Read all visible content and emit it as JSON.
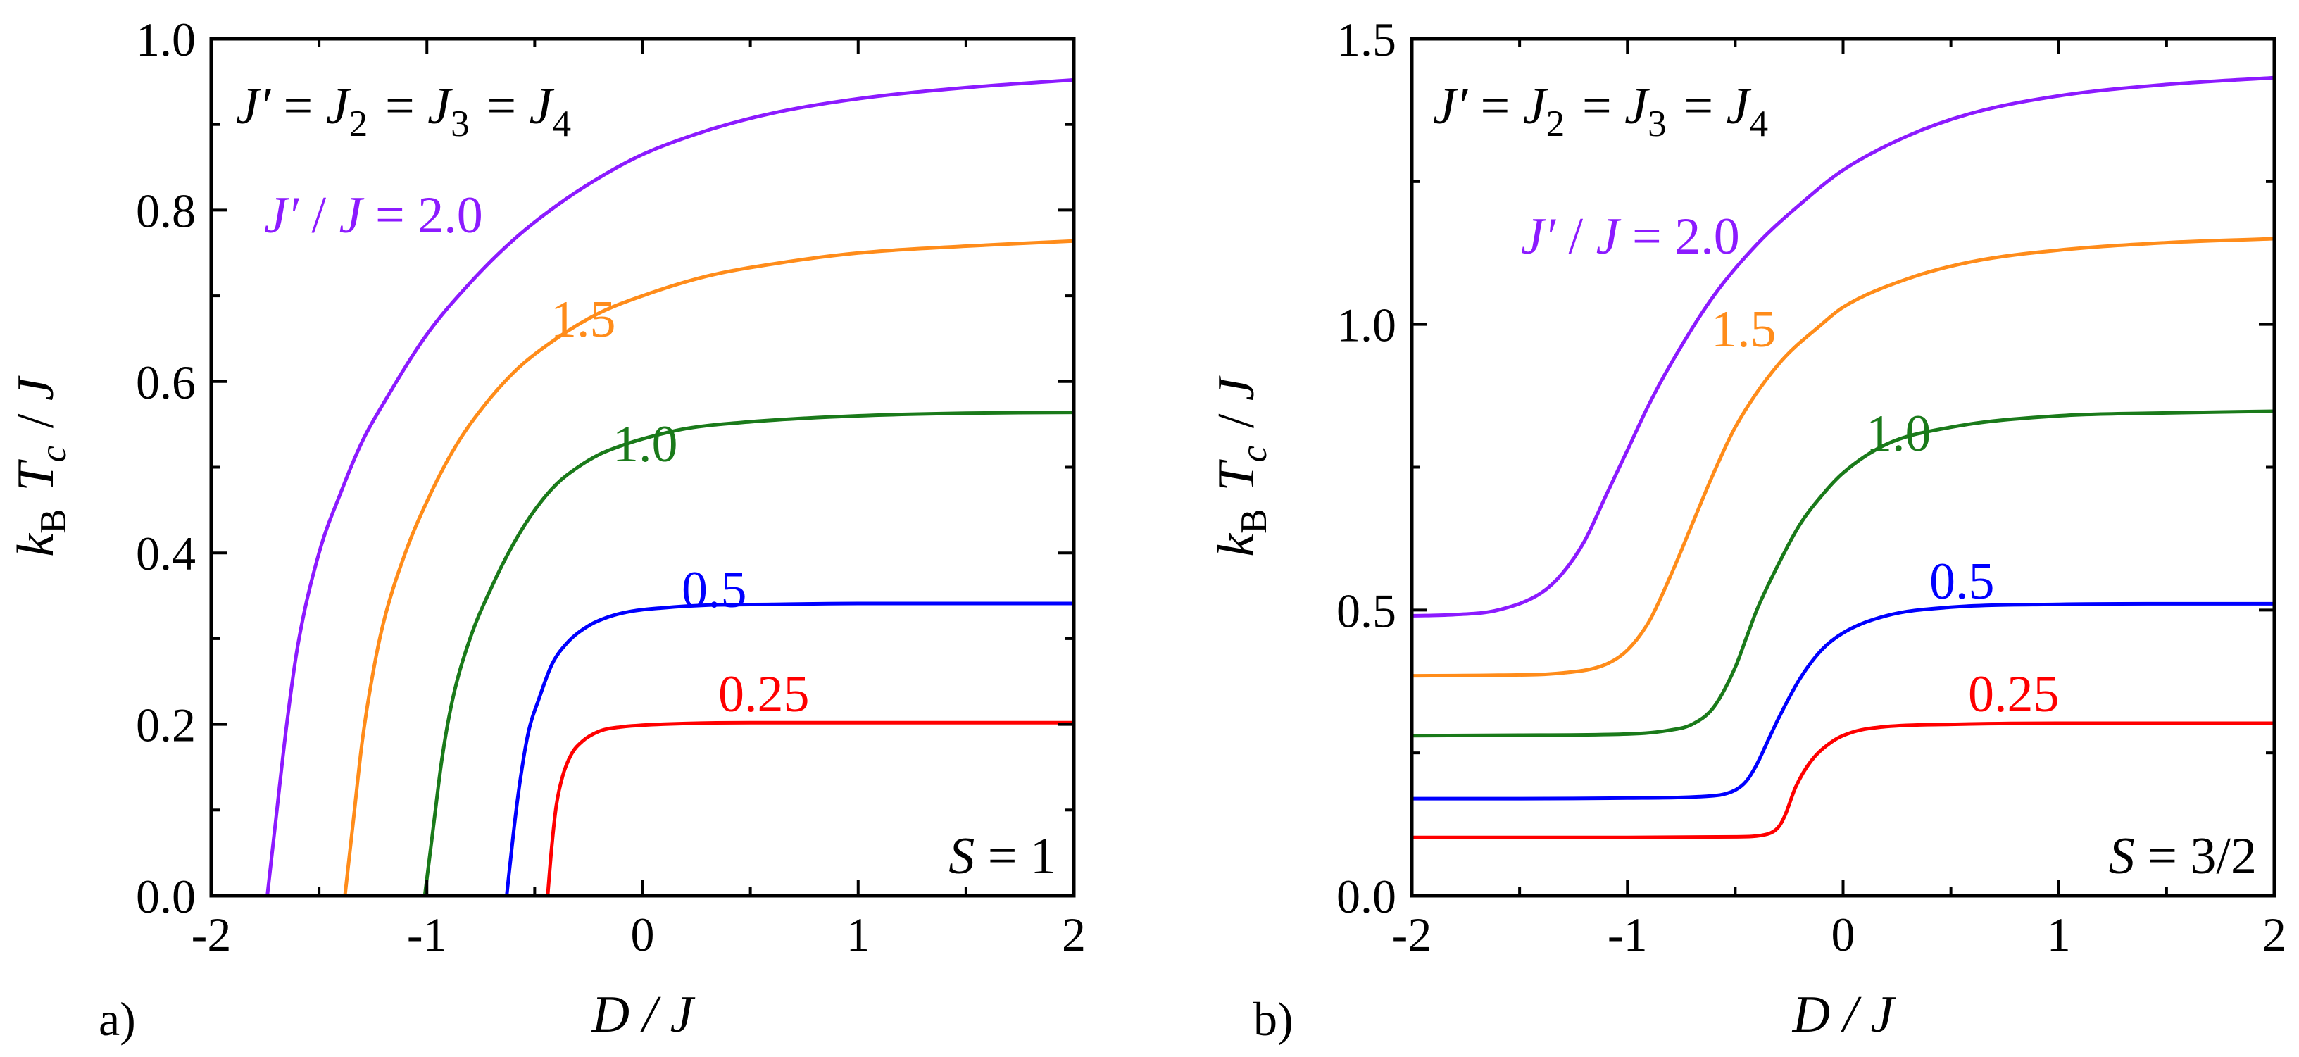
{
  "chart_data": [
    {
      "type": "line",
      "panel_tag": "a)",
      "xlabel": "D / J",
      "ylabel": "k_B T_c / J",
      "xlim": [
        -2,
        2
      ],
      "ylim": [
        0,
        1.0
      ],
      "xticks": [
        {
          "value": -2,
          "label": "-2"
        },
        {
          "value": -1,
          "label": "-1"
        },
        {
          "value": 0,
          "label": "0"
        },
        {
          "value": 1,
          "label": "1"
        },
        {
          "value": 2,
          "label": "2"
        }
      ],
      "yticks": [
        {
          "value": 0.0,
          "label": "0.0"
        },
        {
          "value": 0.2,
          "label": "0.2"
        },
        {
          "value": 0.4,
          "label": "0.4"
        },
        {
          "value": 0.6,
          "label": "0.6"
        },
        {
          "value": 0.8,
          "label": "0.8"
        },
        {
          "value": 1.0,
          "label": "1.0"
        }
      ],
      "condition": "J′ = J₂ = J₃ = J₄",
      "spin": "S = 1",
      "series": [
        {
          "name": "J′ / J = 2.0",
          "label": "J′ / J = 2.0",
          "color": "#8c1aff",
          "x": [
            -1.74,
            -1.7,
            -1.65,
            -1.6,
            -1.5,
            -1.4,
            -1.3,
            -1.2,
            -1.0,
            -0.8,
            -0.6,
            -0.4,
            -0.2,
            0.0,
            0.3,
            0.6,
            1.0,
            1.5,
            2.0
          ],
          "y": [
            0.0,
            0.09,
            0.2,
            0.29,
            0.4,
            0.47,
            0.53,
            0.575,
            0.655,
            0.715,
            0.765,
            0.805,
            0.838,
            0.865,
            0.893,
            0.913,
            0.93,
            0.943,
            0.952
          ]
        },
        {
          "name": "1.5",
          "label": "1.5",
          "color": "#ff8c1a",
          "x": [
            -1.38,
            -1.34,
            -1.3,
            -1.25,
            -1.2,
            -1.1,
            -1.0,
            -0.9,
            -0.8,
            -0.6,
            -0.4,
            -0.2,
            0.0,
            0.3,
            0.6,
            1.0,
            1.5,
            2.0
          ],
          "y": [
            0.0,
            0.09,
            0.18,
            0.26,
            0.32,
            0.4,
            0.46,
            0.51,
            0.55,
            0.61,
            0.65,
            0.68,
            0.7,
            0.723,
            0.737,
            0.75,
            0.758,
            0.764
          ]
        },
        {
          "name": "1.0",
          "label": "1.0",
          "color": "#1a7a1a",
          "x": [
            -1.01,
            -0.97,
            -0.93,
            -0.88,
            -0.8,
            -0.7,
            -0.6,
            -0.5,
            -0.4,
            -0.3,
            -0.2,
            -0.1,
            0.0,
            0.2,
            0.5,
            1.0,
            1.5,
            2.0
          ],
          "y": [
            0.0,
            0.08,
            0.16,
            0.23,
            0.3,
            0.36,
            0.41,
            0.45,
            0.48,
            0.5,
            0.515,
            0.525,
            0.533,
            0.545,
            0.553,
            0.56,
            0.563,
            0.564
          ]
        },
        {
          "name": "0.5",
          "label": "0.5",
          "color": "#0000ff",
          "x": [
            -0.63,
            -0.6,
            -0.57,
            -0.53,
            -0.48,
            -0.42,
            -0.35,
            -0.25,
            -0.15,
            -0.05,
            0.1,
            0.3,
            0.6,
            1.0,
            1.5,
            2.0
          ],
          "y": [
            0.0,
            0.07,
            0.13,
            0.19,
            0.23,
            0.27,
            0.295,
            0.315,
            0.326,
            0.332,
            0.336,
            0.339,
            0.34,
            0.341,
            0.341,
            0.341
          ]
        },
        {
          "name": "0.25",
          "label": "0.25",
          "color": "#ff0000",
          "x": [
            -0.44,
            -0.42,
            -0.4,
            -0.37,
            -0.33,
            -0.28,
            -0.2,
            -0.1,
            0.0,
            0.2,
            0.5,
            1.0,
            1.5,
            2.0
          ],
          "y": [
            0.0,
            0.06,
            0.105,
            0.14,
            0.165,
            0.18,
            0.192,
            0.197,
            0.199,
            0.201,
            0.202,
            0.202,
            0.202,
            0.202
          ]
        }
      ]
    },
    {
      "type": "line",
      "panel_tag": "b)",
      "xlabel": "D / J",
      "ylabel": "k_B T_c / J",
      "xlim": [
        -2,
        2
      ],
      "ylim": [
        0,
        1.5
      ],
      "xticks": [
        {
          "value": -2,
          "label": "-2"
        },
        {
          "value": -1,
          "label": "-1"
        },
        {
          "value": 0,
          "label": "0"
        },
        {
          "value": 1,
          "label": "1"
        },
        {
          "value": 2,
          "label": "2"
        }
      ],
      "yticks": [
        {
          "value": 0.0,
          "label": "0.0"
        },
        {
          "value": 0.5,
          "label": "0.5"
        },
        {
          "value": 1.0,
          "label": "1.0"
        },
        {
          "value": 1.5,
          "label": "1.5"
        }
      ],
      "condition": "J′ = J₂ = J₃ = J₄",
      "spin": "S = 3/2",
      "series": [
        {
          "name": "J′ / J = 2.0",
          "label": "J′ / J = 2.0",
          "color": "#8c1aff",
          "x": [
            -2.0,
            -1.8,
            -1.6,
            -1.4,
            -1.3,
            -1.2,
            -1.1,
            -1.0,
            -0.9,
            -0.8,
            -0.6,
            -0.4,
            -0.2,
            0.0,
            0.3,
            0.6,
            1.0,
            1.5,
            2.0
          ],
          "y": [
            0.49,
            0.492,
            0.5,
            0.53,
            0.565,
            0.62,
            0.7,
            0.78,
            0.86,
            0.93,
            1.05,
            1.14,
            1.21,
            1.27,
            1.33,
            1.37,
            1.4,
            1.42,
            1.432
          ]
        },
        {
          "name": "1.5",
          "label": "1.5",
          "color": "#ff8c1a",
          "x": [
            -2.0,
            -1.6,
            -1.3,
            -1.1,
            -1.0,
            -0.9,
            -0.8,
            -0.7,
            -0.6,
            -0.5,
            -0.3,
            -0.1,
            0.0,
            0.3,
            0.6,
            1.0,
            1.5,
            2.0
          ],
          "y": [
            0.385,
            0.386,
            0.39,
            0.405,
            0.43,
            0.48,
            0.56,
            0.65,
            0.74,
            0.82,
            0.93,
            1.0,
            1.03,
            1.08,
            1.11,
            1.13,
            1.143,
            1.15
          ]
        },
        {
          "name": "1.0",
          "label": "1.0",
          "color": "#1a7a1a",
          "x": [
            -2.0,
            -1.5,
            -1.0,
            -0.8,
            -0.7,
            -0.6,
            -0.5,
            -0.45,
            -0.4,
            -0.3,
            -0.2,
            -0.1,
            0.0,
            0.2,
            0.5,
            1.0,
            1.5,
            2.0
          ],
          "y": [
            0.28,
            0.281,
            0.283,
            0.29,
            0.3,
            0.33,
            0.4,
            0.45,
            0.5,
            0.58,
            0.65,
            0.7,
            0.74,
            0.79,
            0.82,
            0.84,
            0.845,
            0.848
          ]
        },
        {
          "name": "0.5",
          "label": "0.5",
          "color": "#0000ff",
          "x": [
            -2.0,
            -1.5,
            -1.0,
            -0.6,
            -0.5,
            -0.45,
            -0.4,
            -0.35,
            -0.3,
            -0.2,
            -0.1,
            0.0,
            0.2,
            0.5,
            1.0,
            1.5,
            2.0
          ],
          "y": [
            0.17,
            0.17,
            0.171,
            0.175,
            0.185,
            0.2,
            0.23,
            0.27,
            0.31,
            0.38,
            0.43,
            0.46,
            0.49,
            0.505,
            0.51,
            0.511,
            0.511
          ]
        },
        {
          "name": "0.25",
          "label": "0.25",
          "color": "#ff0000",
          "x": [
            -2.0,
            -1.5,
            -1.0,
            -0.5,
            -0.35,
            -0.3,
            -0.27,
            -0.22,
            -0.15,
            -0.05,
            0.05,
            0.2,
            0.5,
            1.0,
            1.5,
            2.0
          ],
          "y": [
            0.102,
            0.102,
            0.102,
            0.103,
            0.108,
            0.12,
            0.14,
            0.19,
            0.235,
            0.27,
            0.287,
            0.296,
            0.3,
            0.302,
            0.302,
            0.302
          ]
        }
      ]
    }
  ]
}
